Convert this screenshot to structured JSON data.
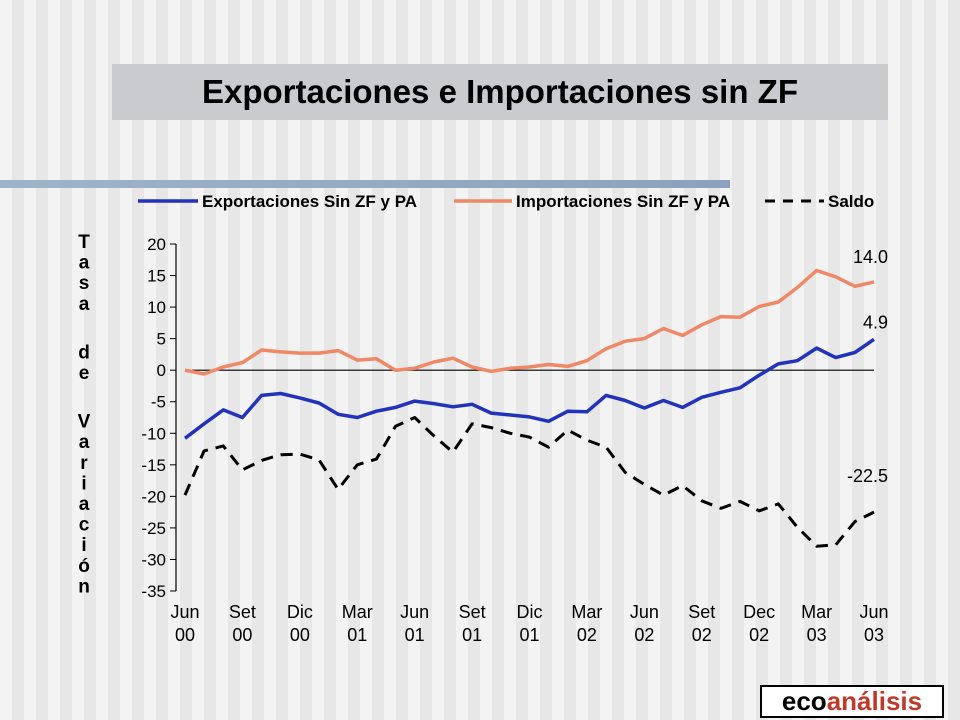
{
  "slide": {
    "title": "Exportaciones e Importaciones sin ZF",
    "logo": {
      "part1": "eco",
      "part2": "análisis"
    }
  },
  "colors": {
    "exports": "#2233bb",
    "imports": "#ee8866",
    "saldo": "#000000"
  },
  "chart_data": {
    "type": "line",
    "title": "",
    "ylabel": "Tasa de Variación",
    "ylim": [
      -35,
      20
    ],
    "yticks": [
      20,
      15,
      10,
      5,
      0,
      -5,
      -10,
      -15,
      -20,
      -25,
      -30,
      -35
    ],
    "x_tick_labels": [
      [
        "Jun",
        "00"
      ],
      [
        "Set",
        "00"
      ],
      [
        "Dic",
        "00"
      ],
      [
        "Mar",
        "01"
      ],
      [
        "Jun",
        "01"
      ],
      [
        "Set",
        "01"
      ],
      [
        "Dic",
        "01"
      ],
      [
        "Mar",
        "02"
      ],
      [
        "Jun",
        "02"
      ],
      [
        "Set",
        "02"
      ],
      [
        "Dec",
        "02"
      ],
      [
        "Mar",
        "03"
      ],
      [
        "Jun",
        "03"
      ]
    ],
    "legend_position": "top",
    "series": [
      {
        "name": "Exportaciones Sin ZF y PA",
        "style": "solid",
        "values": [
          -10.8,
          -8.5,
          -6.3,
          -7.5,
          -4.0,
          -3.7,
          -4.4,
          -5.2,
          -7.0,
          -7.5,
          -6.5,
          -5.9,
          -4.9,
          -5.3,
          -5.8,
          -5.4,
          -6.8,
          -7.1,
          -7.4,
          -8.1,
          -6.5,
          -6.6,
          -4.0,
          -4.8,
          -6.0,
          -4.8,
          -5.9,
          -4.3,
          -3.5,
          -2.8,
          -0.8,
          1.0,
          1.5,
          3.5,
          2.0,
          2.8,
          4.9
        ],
        "end_label": "4.9"
      },
      {
        "name": "Importaciones Sin ZF y PA",
        "style": "solid",
        "values": [
          0.0,
          -0.6,
          0.5,
          1.2,
          3.2,
          2.9,
          2.7,
          2.7,
          3.1,
          1.6,
          1.8,
          0.0,
          0.3,
          1.3,
          1.9,
          0.5,
          -0.2,
          0.3,
          0.5,
          0.9,
          0.6,
          1.5,
          3.4,
          4.6,
          5.0,
          6.6,
          5.5,
          7.2,
          8.5,
          8.4,
          10.1,
          10.8,
          13.1,
          15.8,
          14.8,
          13.3,
          14.0
        ],
        "end_label": "14.0"
      },
      {
        "name": "Saldo",
        "style": "dashed",
        "values": [
          -19.8,
          -12.8,
          -12.0,
          -15.8,
          -14.3,
          -13.4,
          -13.3,
          -14.2,
          -18.9,
          -15.0,
          -14.1,
          -8.9,
          -7.5,
          -10.4,
          -13.0,
          -8.5,
          -9.1,
          -10.0,
          -10.6,
          -12.2,
          -9.5,
          -11.1,
          -12.2,
          -16.2,
          -18.1,
          -19.8,
          -18.3,
          -20.7,
          -21.9,
          -20.8,
          -22.3,
          -21.2,
          -24.9,
          -27.9,
          -27.7,
          -24.0,
          -22.5
        ],
        "end_label": "-22.5"
      }
    ]
  }
}
